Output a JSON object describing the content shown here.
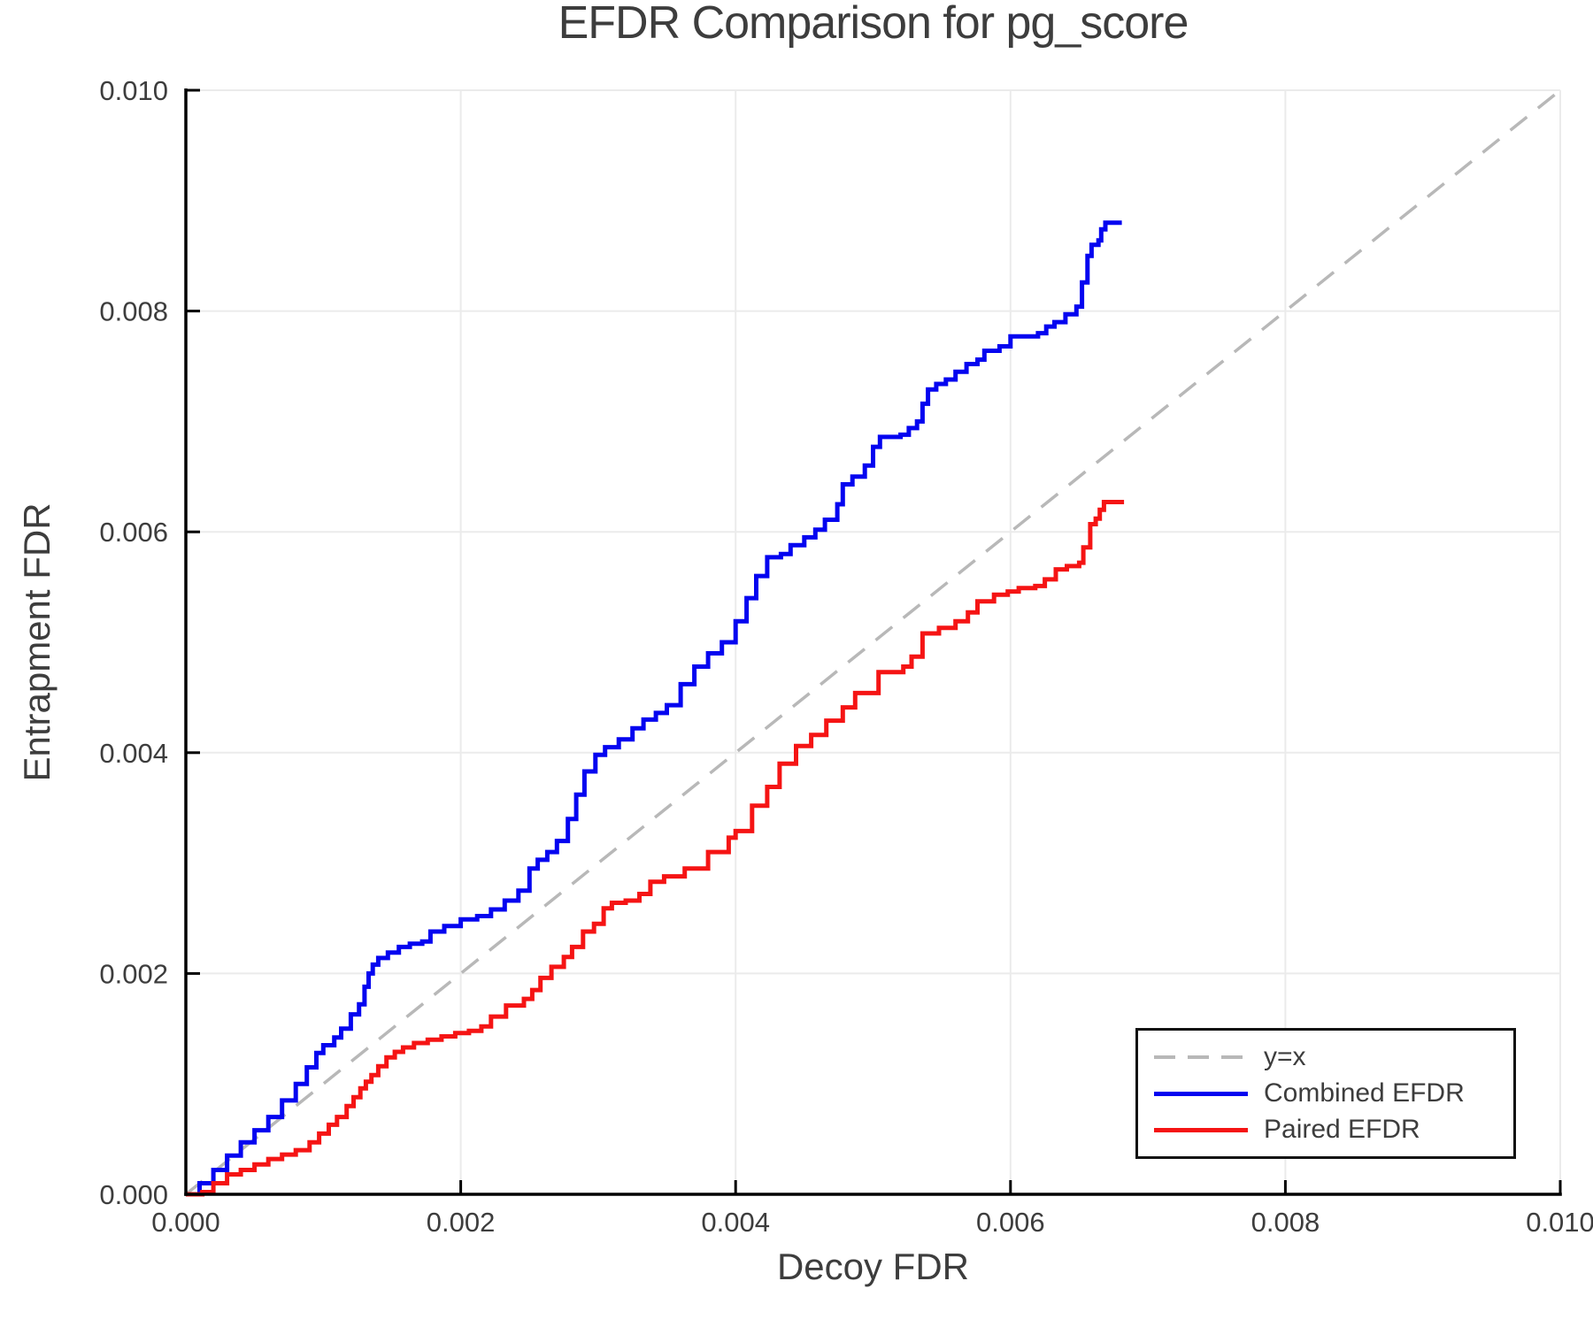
{
  "chart_data": {
    "type": "line",
    "title": "EFDR Comparison for pg_score",
    "xlabel": "Decoy FDR",
    "ylabel": "Entrapment FDR",
    "xlim": [
      0.0,
      0.01
    ],
    "ylim": [
      0.0,
      0.01
    ],
    "x_ticks": [
      0.0,
      0.002,
      0.004,
      0.006,
      0.008,
      0.01
    ],
    "y_ticks": [
      0.0,
      0.002,
      0.004,
      0.006,
      0.008,
      0.01
    ],
    "tick_decimals": 3,
    "grid": true,
    "legend_position": "lower right",
    "colors": {
      "grid": "#ebebeb",
      "spine": "#000000",
      "text": "#3d3d3d",
      "diagonal": "#b8b8b8",
      "combined": "#0404f0",
      "paired": "#f51414"
    },
    "series": [
      {
        "name": "y=x",
        "color": "#b8b8b8",
        "dash": true,
        "step": false,
        "width": 3.5,
        "points": [
          [
            0.0,
            0.0
          ],
          [
            0.01,
            0.01
          ]
        ]
      },
      {
        "name": "Combined EFDR",
        "color": "#0404f0",
        "dash": false,
        "step": true,
        "width": 5,
        "points": [
          [
            0.0,
            0.0
          ],
          [
            0.0001,
            0.0001
          ],
          [
            0.0002,
            0.00022
          ],
          [
            0.0003,
            0.00035
          ],
          [
            0.0004,
            0.00047
          ],
          [
            0.0005,
            0.00058
          ],
          [
            0.0006,
            0.0007
          ],
          [
            0.0007,
            0.00085
          ],
          [
            0.0008,
            0.001
          ],
          [
            0.00088,
            0.00115
          ],
          [
            0.00095,
            0.00128
          ],
          [
            0.001,
            0.00135
          ],
          [
            0.00108,
            0.00142
          ],
          [
            0.00113,
            0.0015
          ],
          [
            0.0012,
            0.00163
          ],
          [
            0.00126,
            0.00172
          ],
          [
            0.0013,
            0.00188
          ],
          [
            0.00133,
            0.002
          ],
          [
            0.00136,
            0.00208
          ],
          [
            0.0014,
            0.00214
          ],
          [
            0.00147,
            0.00219
          ],
          [
            0.00155,
            0.00224
          ],
          [
            0.00163,
            0.00227
          ],
          [
            0.00172,
            0.00229
          ],
          [
            0.00178,
            0.00238
          ],
          [
            0.00188,
            0.00243
          ],
          [
            0.002,
            0.00249
          ],
          [
            0.00212,
            0.00252
          ],
          [
            0.00222,
            0.00258
          ],
          [
            0.00232,
            0.00266
          ],
          [
            0.00242,
            0.00275
          ],
          [
            0.0025,
            0.00295
          ],
          [
            0.00256,
            0.00303
          ],
          [
            0.00263,
            0.0031
          ],
          [
            0.0027,
            0.0032
          ],
          [
            0.00278,
            0.0034
          ],
          [
            0.00284,
            0.00362
          ],
          [
            0.0029,
            0.00383
          ],
          [
            0.00298,
            0.00398
          ],
          [
            0.00305,
            0.00405
          ],
          [
            0.00315,
            0.00412
          ],
          [
            0.00325,
            0.00422
          ],
          [
            0.00333,
            0.0043
          ],
          [
            0.00342,
            0.00436
          ],
          [
            0.0035,
            0.00443
          ],
          [
            0.0036,
            0.00462
          ],
          [
            0.0037,
            0.00478
          ],
          [
            0.0038,
            0.0049
          ],
          [
            0.0039,
            0.005
          ],
          [
            0.004,
            0.00519
          ],
          [
            0.00408,
            0.0054
          ],
          [
            0.00415,
            0.0056
          ],
          [
            0.00423,
            0.00577
          ],
          [
            0.00433,
            0.0058
          ],
          [
            0.0044,
            0.00588
          ],
          [
            0.0045,
            0.00595
          ],
          [
            0.00458,
            0.00602
          ],
          [
            0.00465,
            0.00611
          ],
          [
            0.00474,
            0.00625
          ],
          [
            0.00478,
            0.00643
          ],
          [
            0.00485,
            0.0065
          ],
          [
            0.00494,
            0.0066
          ],
          [
            0.005,
            0.00677
          ],
          [
            0.00505,
            0.00686
          ],
          [
            0.0052,
            0.00688
          ],
          [
            0.00526,
            0.00694
          ],
          [
            0.00532,
            0.007
          ],
          [
            0.00536,
            0.00716
          ],
          [
            0.0054,
            0.00729
          ],
          [
            0.00546,
            0.00734
          ],
          [
            0.00553,
            0.00738
          ],
          [
            0.0056,
            0.00745
          ],
          [
            0.00568,
            0.00752
          ],
          [
            0.00576,
            0.00756
          ],
          [
            0.00581,
            0.00764
          ],
          [
            0.00592,
            0.00768
          ],
          [
            0.006,
            0.00777
          ],
          [
            0.0062,
            0.0078
          ],
          [
            0.00626,
            0.00786
          ],
          [
            0.00632,
            0.0079
          ],
          [
            0.0064,
            0.00797
          ],
          [
            0.00648,
            0.00804
          ],
          [
            0.00652,
            0.00826
          ],
          [
            0.00656,
            0.0085
          ],
          [
            0.00659,
            0.0086
          ],
          [
            0.00664,
            0.00864
          ],
          [
            0.00666,
            0.00874
          ],
          [
            0.00669,
            0.0088
          ],
          [
            0.00681,
            0.0088
          ]
        ]
      },
      {
        "name": "Paired EFDR",
        "color": "#f51414",
        "dash": false,
        "step": true,
        "width": 5,
        "points": [
          [
            0.0,
            0.0
          ],
          [
            0.00012,
            2e-05
          ],
          [
            0.0002,
            0.0001
          ],
          [
            0.0003,
            0.00018
          ],
          [
            0.0004,
            0.00022
          ],
          [
            0.0005,
            0.00027
          ],
          [
            0.0006,
            0.00032
          ],
          [
            0.0007,
            0.00036
          ],
          [
            0.0008,
            0.0004
          ],
          [
            0.0009,
            0.00047
          ],
          [
            0.00097,
            0.00055
          ],
          [
            0.00104,
            0.00063
          ],
          [
            0.0011,
            0.0007
          ],
          [
            0.00117,
            0.0008
          ],
          [
            0.00122,
            0.00088
          ],
          [
            0.00127,
            0.00096
          ],
          [
            0.00131,
            0.00102
          ],
          [
            0.00135,
            0.00108
          ],
          [
            0.0014,
            0.00116
          ],
          [
            0.00146,
            0.00124
          ],
          [
            0.00152,
            0.00129
          ],
          [
            0.00158,
            0.00133
          ],
          [
            0.00166,
            0.00137
          ],
          [
            0.00176,
            0.0014
          ],
          [
            0.00186,
            0.00143
          ],
          [
            0.00196,
            0.00146
          ],
          [
            0.00206,
            0.00148
          ],
          [
            0.00215,
            0.00152
          ],
          [
            0.00222,
            0.00161
          ],
          [
            0.00233,
            0.00171
          ],
          [
            0.00246,
            0.00177
          ],
          [
            0.00252,
            0.00185
          ],
          [
            0.00258,
            0.00196
          ],
          [
            0.00266,
            0.00206
          ],
          [
            0.00275,
            0.00215
          ],
          [
            0.00281,
            0.00224
          ],
          [
            0.00289,
            0.00238
          ],
          [
            0.00297,
            0.00245
          ],
          [
            0.00304,
            0.00259
          ],
          [
            0.0031,
            0.00264
          ],
          [
            0.0032,
            0.00266
          ],
          [
            0.0033,
            0.00272
          ],
          [
            0.00338,
            0.00283
          ],
          [
            0.00348,
            0.00288
          ],
          [
            0.00363,
            0.00295
          ],
          [
            0.0038,
            0.0031
          ],
          [
            0.00395,
            0.00323
          ],
          [
            0.004,
            0.00329
          ],
          [
            0.00412,
            0.00352
          ],
          [
            0.00423,
            0.00369
          ],
          [
            0.00432,
            0.0039
          ],
          [
            0.00444,
            0.00406
          ],
          [
            0.00455,
            0.00416
          ],
          [
            0.00466,
            0.00429
          ],
          [
            0.00478,
            0.00441
          ],
          [
            0.00487,
            0.00454
          ],
          [
            0.00504,
            0.00473
          ],
          [
            0.00522,
            0.00478
          ],
          [
            0.00528,
            0.00487
          ],
          [
            0.00536,
            0.00508
          ],
          [
            0.00548,
            0.00513
          ],
          [
            0.0056,
            0.00519
          ],
          [
            0.00569,
            0.00527
          ],
          [
            0.00576,
            0.00537
          ],
          [
            0.00588,
            0.00543
          ],
          [
            0.00598,
            0.00546
          ],
          [
            0.00606,
            0.00549
          ],
          [
            0.00618,
            0.00551
          ],
          [
            0.00625,
            0.00557
          ],
          [
            0.00633,
            0.00566
          ],
          [
            0.00641,
            0.00569
          ],
          [
            0.0065,
            0.00572
          ],
          [
            0.00653,
            0.00586
          ],
          [
            0.00658,
            0.00607
          ],
          [
            0.00662,
            0.00612
          ],
          [
            0.00665,
            0.0062
          ],
          [
            0.00668,
            0.00627
          ],
          [
            0.00681,
            0.00629
          ]
        ]
      }
    ]
  }
}
